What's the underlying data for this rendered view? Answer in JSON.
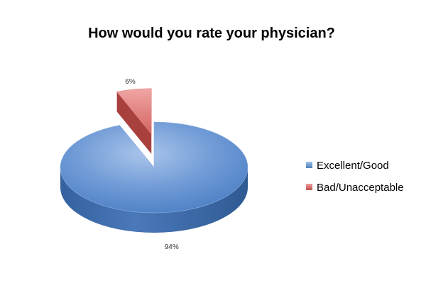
{
  "chart_data": {
    "type": "pie",
    "title": "How would you rate your physician?",
    "categories": [
      "Excellent/Good",
      "Bad/Unacceptable"
    ],
    "values": [
      94,
      6
    ],
    "data_labels": [
      "94%",
      "6%"
    ],
    "colors": [
      "#4f81bd",
      "#c0504d"
    ],
    "exploded_slice": "Bad/Unacceptable",
    "style": "3d",
    "legend": {
      "position": "right",
      "entries": [
        "Excellent/Good",
        "Bad/Unacceptable"
      ]
    }
  }
}
